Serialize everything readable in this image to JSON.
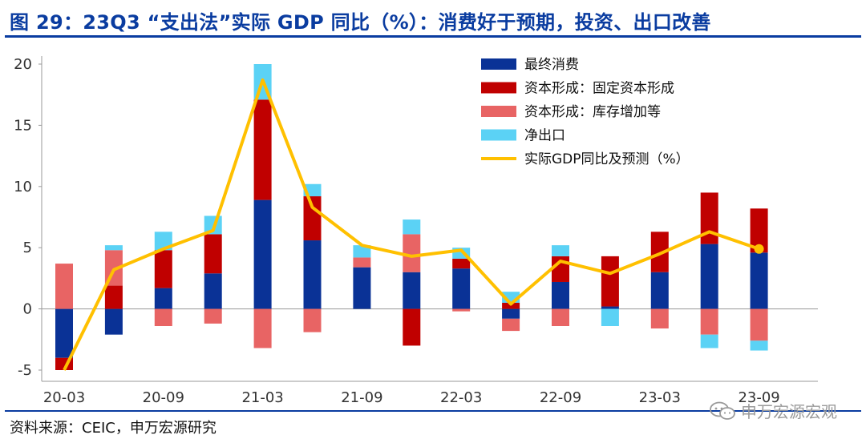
{
  "header": {
    "title": "图 29：23Q3 “支出法”实际 GDP 同比（%）：消费好于预期，投资、出口改善"
  },
  "footer": {
    "source": "资料来源：CEIC，申万宏源研究",
    "watermark": "申万宏源宏观"
  },
  "colors": {
    "consumption": "#0a3296",
    "fixed_capital": "#c00000",
    "inventory": "#e86464",
    "net_exports": "#5bd2f5",
    "gdp_line": "#ffc000",
    "title": "#0a3ca0"
  },
  "chart_data": {
    "type": "bar",
    "stacked": true,
    "categories": [
      "20-03",
      "20-06",
      "20-09",
      "20-12",
      "21-03",
      "21-06",
      "21-09",
      "21-12",
      "22-03",
      "22-06",
      "22-09",
      "22-12",
      "23-03",
      "23-06",
      "23-09"
    ],
    "x_tick_labels": [
      "20-03",
      "20-09",
      "21-03",
      "21-09",
      "22-03",
      "22-09",
      "23-03",
      "23-09"
    ],
    "ylim": [
      -5,
      20
    ],
    "yticks": [
      -5,
      0,
      5,
      10,
      15,
      20
    ],
    "grid": false,
    "legend_position": "top-right",
    "series": [
      {
        "name": "最终消费",
        "values": [
          -4.0,
          -2.1,
          1.7,
          2.9,
          8.9,
          5.6,
          3.4,
          3.0,
          3.3,
          -0.8,
          2.2,
          0.2,
          3.0,
          5.3,
          4.6
        ]
      },
      {
        "name": "资本形成：固定资本形成",
        "values": [
          -1.0,
          1.9,
          3.1,
          3.2,
          8.2,
          3.6,
          0.0,
          -3.0,
          0.8,
          0.5,
          2.1,
          4.1,
          3.3,
          4.2,
          3.6
        ]
      },
      {
        "name": "资本形成：库存增加等",
        "values": [
          3.7,
          2.9,
          -1.4,
          -1.2,
          -3.2,
          -1.9,
          0.8,
          3.1,
          -0.2,
          -1.0,
          -1.4,
          0.0,
          -1.6,
          -2.1,
          -2.6
        ]
      },
      {
        "name": "净出口",
        "values": [
          0.0,
          0.4,
          1.5,
          1.5,
          2.9,
          1.0,
          1.0,
          1.2,
          0.9,
          0.9,
          0.9,
          -1.4,
          0.0,
          -1.1,
          -0.8
        ]
      },
      {
        "name": "实际GDP同比及预测（%）",
        "type": "line",
        "values": [
          -5.0,
          3.2,
          4.9,
          6.4,
          18.7,
          8.3,
          5.2,
          4.3,
          4.8,
          0.4,
          3.9,
          2.9,
          4.5,
          6.3,
          4.9
        ]
      }
    ]
  }
}
